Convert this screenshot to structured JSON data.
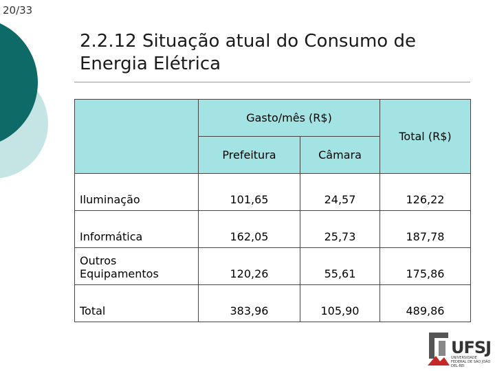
{
  "slide_number": "20/33",
  "title": "2.2.12 Situação atual do Consumo de Energia Elétrica",
  "table": {
    "header": {
      "group": "Gasto/mês (R$)",
      "sub": [
        "Prefeitura",
        "Câmara"
      ],
      "total": "Total (R$)"
    },
    "rows": [
      [
        "Iluminação",
        "101,65",
        "24,57",
        "126,22"
      ],
      [
        "Informática",
        "162,05",
        "25,73",
        "187,78"
      ],
      [
        "Outros Equipamentos",
        "120,26",
        "55,61",
        "175,86"
      ],
      [
        "Total",
        "383,96",
        "105,90",
        "489,86"
      ]
    ]
  },
  "logo": {
    "name": "UFSJ",
    "subtitle": "UNIVERSIDADE FEDERAL DE SÃO JOÃO DEL-REI"
  }
}
